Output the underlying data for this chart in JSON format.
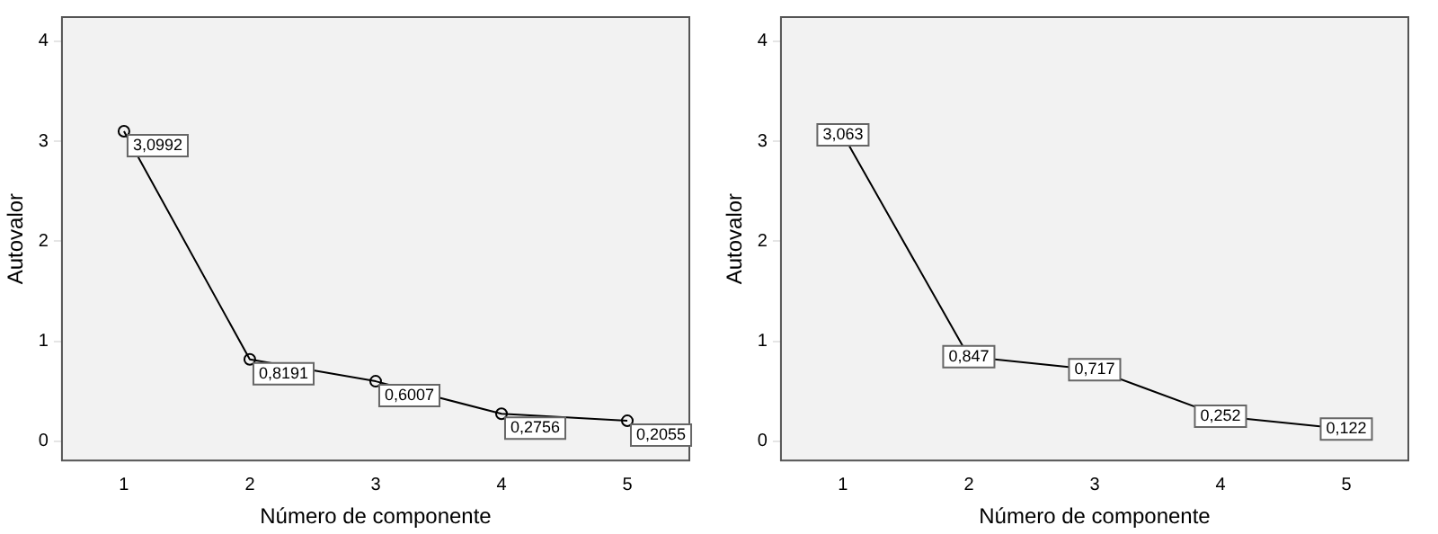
{
  "chart_data": [
    {
      "type": "line",
      "xlabel": "Número de componente",
      "ylabel": "Autovalor",
      "categories": [
        "1",
        "2",
        "3",
        "4",
        "5"
      ],
      "values": [
        3.0992,
        0.8191,
        0.6007,
        0.2756,
        0.2055
      ],
      "value_labels": [
        "3,0992",
        "0,8191",
        "0,6007",
        "0,2756",
        "0,2055"
      ],
      "color": "#000000",
      "marker": "circle",
      "ylim": [
        -0.2,
        4.25
      ],
      "yticks": [
        0,
        1,
        2,
        3,
        4
      ],
      "grid": false,
      "legend": false
    },
    {
      "type": "line",
      "xlabel": "Número de componente",
      "ylabel": "Autovalor",
      "categories": [
        "1",
        "2",
        "3",
        "4",
        "5"
      ],
      "values": [
        3.063,
        0.847,
        0.717,
        0.252,
        0.122
      ],
      "value_labels": [
        "3,063",
        "0,847",
        "0,717",
        "0,252",
        "0,122"
      ],
      "color": "#000000",
      "marker": "square",
      "ylim": [
        -0.2,
        4.25
      ],
      "yticks": [
        0,
        1,
        2,
        3,
        4
      ],
      "grid": false,
      "legend": false
    }
  ]
}
